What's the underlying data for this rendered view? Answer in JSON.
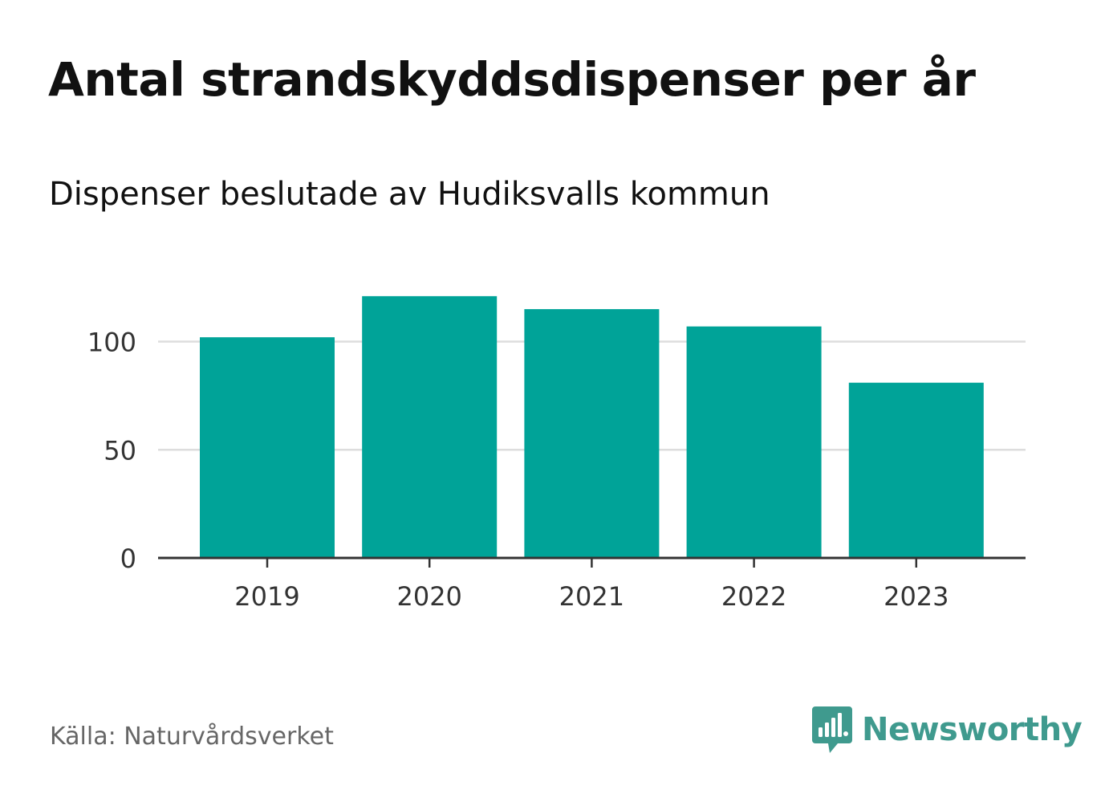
{
  "title": "Antal strandskyddsdispenser per år",
  "subtitle": "Dispenser beslutade av Hudiksvalls kommun",
  "source": "Källa: Naturvårdsverket",
  "brand": {
    "name": "Newsworthy",
    "icon": "newsworthy-logo-icon",
    "color": "#3f9a8e"
  },
  "colors": {
    "bar": "#00a398",
    "grid": "#dddddd",
    "axis": "#333333",
    "tick_text": "#333333"
  },
  "chart_data": {
    "type": "bar",
    "title": "Antal strandskyddsdispenser per år",
    "subtitle": "Dispenser beslutade av Hudiksvalls kommun",
    "xlabel": "",
    "ylabel": "",
    "categories": [
      "2019",
      "2020",
      "2021",
      "2022",
      "2023"
    ],
    "values": [
      102,
      121,
      115,
      107,
      81
    ],
    "yticks": [
      0,
      50,
      100
    ],
    "ylim": [
      0,
      130
    ],
    "grid": true,
    "legend": "none"
  }
}
